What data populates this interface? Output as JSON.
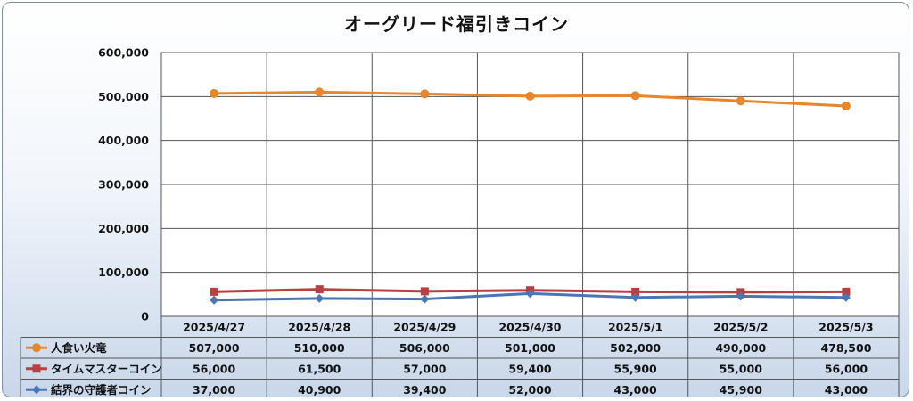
{
  "chart_data": {
    "type": "line",
    "title": "オーグリード福引きコイン",
    "categories": [
      "2025/4/27",
      "2025/4/28",
      "2025/4/29",
      "2025/4/30",
      "2025/5/1",
      "2025/5/2",
      "2025/5/3"
    ],
    "ylim": [
      0,
      600000
    ],
    "yticks": [
      "0",
      "100,000",
      "200,000",
      "300,000",
      "400,000",
      "500,000",
      "600,000"
    ],
    "grid": true,
    "legend": "data-table-left",
    "series": [
      {
        "name": "人食い火竜",
        "color": "#e8862e",
        "marker": "circle",
        "values": [
          507000,
          510000,
          506000,
          501000,
          502000,
          490000,
          478500
        ],
        "labels": [
          "507,000",
          "510,000",
          "506,000",
          "501,000",
          "502,000",
          "490,000",
          "478,500"
        ]
      },
      {
        "name": "タイムマスターコイン",
        "color": "#b94040",
        "marker": "square",
        "values": [
          56000,
          61500,
          57000,
          59400,
          55900,
          55000,
          56000
        ],
        "labels": [
          "56,000",
          "61,500",
          "57,000",
          "59,400",
          "55,900",
          "55,000",
          "56,000"
        ]
      },
      {
        "name": "結界の守護者コイン",
        "color": "#4a76b8",
        "marker": "diamond",
        "values": [
          37000,
          40900,
          39400,
          52000,
          43000,
          45900,
          43000
        ],
        "labels": [
          "37,000",
          "40,900",
          "39,400",
          "52,000",
          "43,000",
          "45,900",
          "43,000"
        ]
      }
    ]
  }
}
